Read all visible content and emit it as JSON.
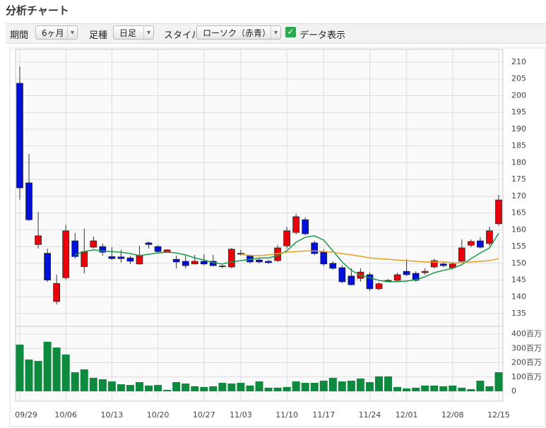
{
  "header": {
    "title": "分析チャート",
    "period_label": "期間",
    "period": "6ヶ月",
    "kind_label": "足種",
    "kind": "日足",
    "style_label": "スタイル",
    "style": "ローソク（赤青）",
    "checkbox": "データ表示"
  },
  "chart_data": [
    {
      "type": "candlestick",
      "categories": [
        "09/29",
        null,
        null,
        null,
        null,
        "10/06",
        null,
        null,
        null,
        null,
        "10/13",
        null,
        null,
        null,
        null,
        "10/20",
        null,
        null,
        null,
        null,
        "10/27",
        null,
        null,
        null,
        "11/03",
        null,
        null,
        null,
        null,
        "11/10",
        null,
        null,
        null,
        "11/17",
        null,
        null,
        null,
        null,
        "11/24",
        null,
        null,
        null,
        "12/01",
        null,
        null,
        null,
        null,
        "12/08",
        null,
        null,
        null,
        null,
        "12/15"
      ],
      "open": [
        203.7,
        174,
        155.6,
        153,
        138.6,
        145.7,
        156.7,
        149,
        154.8,
        155,
        152,
        151.9,
        151.6,
        149.8,
        156.1,
        155,
        153.3,
        151.2,
        150.6,
        149.8,
        150.6,
        150.6,
        149.2,
        148.9,
        152.7,
        152.3,
        151,
        150.6,
        150.8,
        155.2,
        159.2,
        163,
        156.1,
        153.5,
        150,
        148.7,
        146.2,
        145.5,
        146.6,
        142.4,
        144.5,
        144.9,
        147.6,
        147,
        147.2,
        148.9,
        149.8,
        148.7,
        150.6,
        155.4,
        156.7,
        155.9,
        161.8
      ],
      "high": [
        208.7,
        182.6,
        165.3,
        154.4,
        146.6,
        161.5,
        159,
        160.3,
        158,
        155.9,
        154.8,
        154,
        152.3,
        155.2,
        156.5,
        155.4,
        154.2,
        152.3,
        152.5,
        152.5,
        152.7,
        152.5,
        149.6,
        154.6,
        154,
        152.7,
        151.4,
        151,
        155.4,
        160.9,
        164.7,
        163.7,
        156.7,
        154.2,
        150.6,
        149.4,
        148.5,
        148.5,
        147.2,
        144.3,
        145.3,
        147.2,
        151.2,
        147.6,
        148.5,
        151.4,
        150.4,
        150.2,
        157.1,
        157.1,
        157.8,
        160.9,
        170.4
      ],
      "low": [
        169,
        162.6,
        154.4,
        144.5,
        137.7,
        145.1,
        151.4,
        147,
        154.4,
        152.3,
        151,
        150.2,
        149.8,
        149.6,
        154.4,
        152.9,
        153.1,
        148.5,
        148.5,
        149.6,
        149.4,
        149.1,
        148.5,
        148.5,
        152.3,
        150,
        150,
        149.8,
        150.4,
        154.4,
        158.6,
        158.4,
        152.5,
        149.1,
        148.1,
        144.1,
        143.4,
        144.5,
        141.8,
        142,
        144.5,
        144.7,
        146.2,
        144.5,
        146.6,
        148.5,
        148.9,
        148.3,
        150.2,
        154.8,
        154.4,
        155.2,
        161.2
      ],
      "close": [
        172.5,
        163,
        158.2,
        145,
        144,
        159.7,
        152,
        153.5,
        156.7,
        153.3,
        151.4,
        151.4,
        150.6,
        152.3,
        155.6,
        153.5,
        154,
        150.4,
        149.3,
        150.6,
        149.8,
        149.3,
        149.1,
        154.2,
        153,
        150.4,
        150.4,
        150.2,
        154.6,
        159.7,
        163.9,
        158.8,
        152.9,
        149.8,
        148.5,
        144.5,
        143.6,
        147.4,
        142.4,
        143.9,
        144.9,
        146.6,
        146.6,
        144.9,
        147.6,
        150.8,
        149.3,
        149.8,
        154.6,
        156.5,
        154.8,
        159.7,
        168.9
      ],
      "up_color": "#e8000b",
      "down_color": "#0010d8",
      "lines": [
        {
          "color": "#1a9a4a",
          "values": [
            null,
            null,
            null,
            null,
            null,
            null,
            152.5,
            153.5,
            154,
            153.7,
            153.5,
            153.3,
            152.9,
            152.3,
            152.7,
            153.1,
            153.3,
            153.1,
            152.5,
            151.6,
            151,
            150.2,
            149.8,
            150.4,
            150.8,
            151.2,
            151.6,
            151.6,
            152.3,
            153.7,
            156.3,
            157.8,
            158.2,
            156.9,
            153.7,
            150.4,
            147.9,
            146.4,
            145.7,
            144.9,
            144.5,
            144.5,
            144.7,
            145.1,
            146,
            147.2,
            147.9,
            148.5,
            149.6,
            151.4,
            153.1,
            154.6,
            159
          ]
        },
        {
          "color": "#e8a020",
          "values": [
            null,
            null,
            null,
            null,
            null,
            null,
            null,
            null,
            null,
            null,
            null,
            null,
            null,
            null,
            null,
            null,
            null,
            null,
            null,
            null,
            null,
            null,
            null,
            null,
            152.7,
            152.3,
            152.3,
            152.5,
            152.9,
            153.3,
            153.5,
            153.7,
            153.7,
            153.5,
            153.3,
            152.9,
            152.5,
            152.1,
            151.6,
            151.4,
            151.2,
            151,
            150.8,
            150.6,
            150.4,
            150.4,
            150.4,
            150.2,
            150.2,
            150.4,
            150.6,
            150.8,
            151.4
          ]
        }
      ],
      "ylim": [
        135,
        210
      ],
      "yticks": [
        135,
        140,
        145,
        150,
        155,
        160,
        165,
        170,
        175,
        180,
        185,
        190,
        195,
        200,
        205,
        210
      ],
      "grid": true
    },
    {
      "type": "bar",
      "color": "#0e8a3e",
      "values": [
        326,
        222,
        212,
        346,
        306,
        257,
        133,
        153,
        94,
        84,
        69,
        49,
        44,
        64,
        40,
        44,
        10,
        64,
        54,
        35,
        30,
        35,
        59,
        54,
        59,
        40,
        69,
        25,
        25,
        30,
        69,
        59,
        59,
        74,
        94,
        69,
        74,
        89,
        64,
        104,
        104,
        30,
        20,
        25,
        40,
        40,
        35,
        40,
        25,
        15,
        74,
        35,
        133
      ],
      "ylim": [
        0,
        400
      ],
      "yticks": [
        0,
        {
          "value": 100,
          "label": "100百万"
        },
        {
          "value": 200,
          "label": "200百万"
        },
        {
          "value": 300,
          "label": "300百万"
        },
        {
          "value": 400,
          "label": "400百万"
        }
      ],
      "grid": true
    }
  ]
}
